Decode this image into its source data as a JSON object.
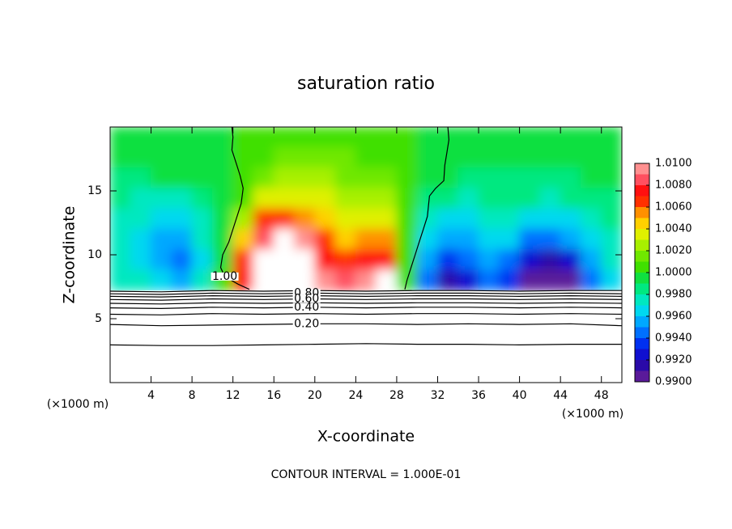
{
  "chart_data": {
    "type": "contour",
    "title": "saturation ratio",
    "xlabel": "X-coordinate",
    "ylabel": "Z-coordinate",
    "x_unit": "(×1000 m)",
    "y_unit": "(×1000 m)",
    "footer": "CONTOUR INTERVAL = 1.000E-01",
    "xlim": [
      0,
      50
    ],
    "ylim": [
      0,
      20
    ],
    "xticks": [
      4,
      8,
      12,
      16,
      20,
      24,
      28,
      32,
      36,
      40,
      44,
      48
    ],
    "yticks": [
      5,
      10,
      15
    ],
    "field": {
      "x": [
        1,
        3,
        5,
        7,
        9,
        11,
        13,
        15,
        17,
        19,
        21,
        23,
        25,
        27,
        29,
        31,
        33,
        35,
        37,
        39,
        41,
        43,
        45,
        47,
        49
      ],
      "z": [
        19.2,
        17.6,
        16,
        14.4,
        12.8,
        11.2,
        9.6,
        8.0
      ],
      "values": [
        [
          0.9995,
          0.9995,
          0.9995,
          0.9995,
          0.9995,
          0.9997,
          1.0,
          1.0004,
          1.0006,
          1.0007,
          1.0007,
          1.0006,
          1.0005,
          1.0004,
          1.0001,
          0.9998,
          0.9997,
          0.9996,
          0.9996,
          0.9996,
          0.9996,
          0.9996,
          0.9996,
          0.9996,
          0.9996
        ],
        [
          0.9993,
          0.9993,
          0.9994,
          0.9994,
          0.9995,
          0.9997,
          1.0002,
          1.0008,
          1.0012,
          1.0013,
          1.0012,
          1.001,
          1.0008,
          1.0006,
          1.0002,
          0.9997,
          0.9994,
          0.9993,
          0.9993,
          0.9993,
          0.9993,
          0.9993,
          0.9993,
          0.9994,
          0.9994
        ],
        [
          0.9988,
          0.9988,
          0.999,
          0.999,
          0.9992,
          0.9996,
          1.0004,
          1.0016,
          1.0022,
          1.0022,
          1.002,
          1.0017,
          1.0014,
          1.001,
          1.0003,
          0.9994,
          0.999,
          0.9988,
          0.9988,
          0.9989,
          0.9988,
          0.9988,
          0.9988,
          0.999,
          0.9991
        ],
        [
          0.998,
          0.9978,
          0.9976,
          0.9976,
          0.9982,
          0.9994,
          1.0008,
          1.003,
          1.0036,
          1.0034,
          1.003,
          1.0026,
          1.0024,
          1.002,
          1.0006,
          0.9988,
          0.998,
          0.9978,
          0.9982,
          0.9982,
          0.998,
          0.9978,
          0.998,
          0.9984,
          0.9986
        ],
        [
          0.9975,
          0.997,
          0.9966,
          0.9964,
          0.9975,
          0.9995,
          1.002,
          1.006,
          1.0065,
          1.0058,
          1.0045,
          1.0036,
          1.0038,
          1.0034,
          1.0004,
          0.9975,
          0.9964,
          0.9966,
          0.9974,
          0.9976,
          0.9968,
          0.9962,
          0.9966,
          0.9976,
          0.998
        ],
        [
          0.9972,
          0.9966,
          0.9958,
          0.9954,
          0.997,
          0.9996,
          1.004,
          1.0082,
          1.011,
          1.0095,
          1.006,
          1.0045,
          1.0055,
          1.0058,
          1.0002,
          0.9966,
          0.995,
          0.9956,
          0.9966,
          0.996,
          0.9948,
          0.994,
          0.995,
          0.9966,
          0.9975
        ],
        [
          0.9972,
          0.9966,
          0.9955,
          0.9948,
          0.9968,
          0.9998,
          1.006,
          1.012,
          1.013,
          1.0125,
          1.0072,
          1.006,
          1.0078,
          1.0072,
          1.0,
          0.9955,
          0.993,
          0.994,
          0.9952,
          0.994,
          0.9925,
          0.9918,
          0.9925,
          0.995,
          0.997
        ],
        [
          0.9975,
          0.997,
          0.9962,
          0.9952,
          0.997,
          1.0,
          1.0075,
          1.013,
          1.014,
          1.0135,
          1.009,
          1.008,
          1.0095,
          1.011,
          1.0,
          0.994,
          0.991,
          0.9925,
          0.9945,
          0.993,
          0.9905,
          0.99,
          0.9905,
          0.994,
          0.9968
        ]
      ]
    },
    "out_of_range_color": "#ffffff",
    "colorbar": {
      "levels": [
        0.99,
        0.991,
        0.992,
        0.993,
        0.994,
        0.995,
        0.996,
        0.997,
        0.998,
        0.999,
        1.0,
        1.001,
        1.002,
        1.003,
        1.004,
        1.005,
        1.006,
        1.007,
        1.008,
        1.009,
        1.01
      ],
      "colors": [
        "#5a1a9a",
        "#2a0aa8",
        "#1010d0",
        "#0030f0",
        "#0070ff",
        "#00a8ff",
        "#00d8f0",
        "#00e8c0",
        "#00e880",
        "#10e040",
        "#40e000",
        "#70e800",
        "#a8f000",
        "#e0f000",
        "#ffd000",
        "#ff9000",
        "#ff3000",
        "#ff1010",
        "#ff5060",
        "#ff9090"
      ],
      "ticks": [
        {
          "value": 0.99,
          "label": "0.9900"
        },
        {
          "value": 0.992,
          "label": "0.9920"
        },
        {
          "value": 0.994,
          "label": "0.9940"
        },
        {
          "value": 0.996,
          "label": "0.9960"
        },
        {
          "value": 0.998,
          "label": "0.9980"
        },
        {
          "value": 1.0,
          "label": "1.0000"
        },
        {
          "value": 1.002,
          "label": "1.0020"
        },
        {
          "value": 1.004,
          "label": "1.0040"
        },
        {
          "value": 1.006,
          "label": "1.0060"
        },
        {
          "value": 1.008,
          "label": "1.0080"
        },
        {
          "value": 1.01,
          "label": "1.0100"
        }
      ]
    },
    "contours": [
      {
        "label": "1.00",
        "x": [
          11.9,
          12.0,
          11.9,
          12.3,
          12.7,
          13.0,
          12.8,
          12.2,
          11.6,
          11.0,
          10.8,
          11.2,
          12.5,
          13.6,
          null,
          33.0,
          33.1,
          32.9,
          32.7,
          32.6,
          31.8,
          31.2,
          31.0,
          30.6,
          30.2,
          29.8,
          29.4,
          29.0,
          28.8
        ],
        "z": [
          20,
          19.2,
          18.2,
          17.2,
          16.2,
          15.2,
          14.0,
          12.5,
          11.0,
          10.0,
          9.0,
          8.3,
          7.7,
          7.3,
          null,
          20,
          19.0,
          18.0,
          17.0,
          15.8,
          15.2,
          14.6,
          13.0,
          12.0,
          11.0,
          10.0,
          9.0,
          8.0,
          7.3
        ]
      },
      {
        "x": [
          0,
          5,
          10,
          15,
          20,
          25,
          30,
          35,
          40,
          45,
          50
        ],
        "z": [
          7.15,
          7.1,
          7.2,
          7.15,
          7.2,
          7.15,
          7.2,
          7.2,
          7.15,
          7.2,
          7.2
        ]
      },
      {
        "label": "0.80",
        "x": [
          0,
          5,
          10,
          15,
          20,
          25,
          30,
          35,
          40,
          45,
          50
        ],
        "z": [
          6.95,
          6.9,
          7.0,
          6.95,
          7.0,
          6.95,
          7.0,
          7.0,
          6.95,
          7.0,
          6.95
        ]
      },
      {
        "x": [
          0,
          5,
          10,
          15,
          20,
          25,
          30,
          35,
          40,
          45,
          50
        ],
        "z": [
          6.75,
          6.7,
          6.8,
          6.75,
          6.8,
          6.75,
          6.8,
          6.8,
          6.75,
          6.8,
          6.75
        ]
      },
      {
        "label": "0.60",
        "x": [
          0,
          5,
          10,
          15,
          20,
          25,
          30,
          35,
          40,
          45,
          50
        ],
        "z": [
          6.5,
          6.45,
          6.55,
          6.5,
          6.55,
          6.5,
          6.55,
          6.55,
          6.5,
          6.55,
          6.5
        ]
      },
      {
        "x": [
          0,
          5,
          10,
          15,
          20,
          25,
          30,
          35,
          40,
          45,
          50
        ],
        "z": [
          6.2,
          6.15,
          6.25,
          6.2,
          6.25,
          6.2,
          6.25,
          6.25,
          6.2,
          6.25,
          6.2
        ]
      },
      {
        "label": "0.40",
        "x": [
          0,
          5,
          10,
          15,
          20,
          25,
          30,
          35,
          40,
          45,
          50
        ],
        "z": [
          5.85,
          5.8,
          5.9,
          5.85,
          5.9,
          5.85,
          5.9,
          5.9,
          5.85,
          5.9,
          5.85
        ]
      },
      {
        "x": [
          0,
          5,
          10,
          15,
          20,
          25,
          30,
          35,
          40,
          45,
          50
        ],
        "z": [
          5.35,
          5.3,
          5.4,
          5.35,
          5.4,
          5.35,
          5.4,
          5.4,
          5.35,
          5.4,
          5.35
        ]
      },
      {
        "label": "0.20",
        "x": [
          0,
          5,
          10,
          15,
          20,
          25,
          30,
          35,
          40,
          45,
          50
        ],
        "z": [
          4.55,
          4.45,
          4.5,
          4.55,
          4.6,
          4.6,
          4.55,
          4.6,
          4.55,
          4.6,
          4.45
        ]
      },
      {
        "x": [
          0,
          5,
          10,
          15,
          20,
          25,
          30,
          35,
          40,
          45,
          50
        ],
        "z": [
          2.95,
          2.9,
          2.9,
          2.95,
          3.0,
          3.05,
          3.0,
          3.0,
          2.95,
          3.0,
          3.0
        ]
      }
    ]
  }
}
